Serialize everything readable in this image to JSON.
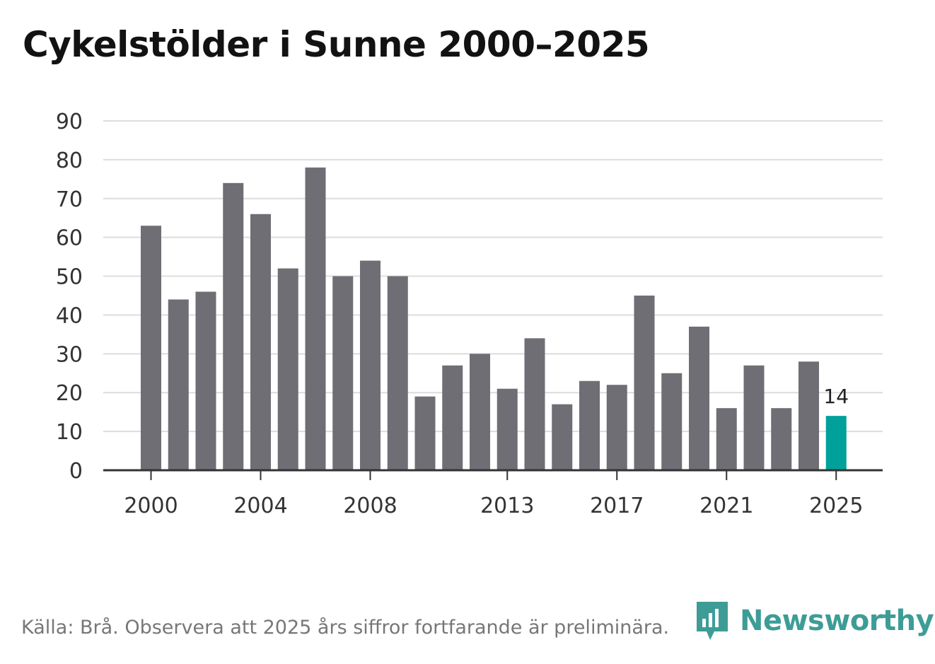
{
  "header": {
    "title": "Cykelstölder i Sunne 2000–2025"
  },
  "chart_data": {
    "type": "bar",
    "title": "Cykelstölder i Sunne 2000–2025",
    "xlabel": "",
    "ylabel": "",
    "categories": [
      "2000",
      "2001",
      "2002",
      "2003",
      "2004",
      "2005",
      "2006",
      "2007",
      "2008",
      "2009",
      "2010",
      "2011",
      "2012",
      "2013",
      "2014",
      "2015",
      "2016",
      "2017",
      "2018",
      "2019",
      "2020",
      "2021",
      "2022",
      "2023",
      "2024",
      "2025"
    ],
    "values": [
      63,
      44,
      46,
      74,
      66,
      52,
      78,
      50,
      54,
      50,
      19,
      27,
      30,
      21,
      34,
      17,
      23,
      22,
      45,
      25,
      37,
      16,
      27,
      16,
      28,
      14
    ],
    "ylim": [
      0,
      90
    ],
    "yticks": [
      0,
      10,
      20,
      30,
      40,
      50,
      60,
      70,
      80,
      90
    ],
    "xticks": [
      "2000",
      "2004",
      "2008",
      "2013",
      "2017",
      "2021",
      "2025"
    ],
    "highlight": {
      "category": "2025",
      "label": "14"
    },
    "grid": true,
    "colors": {
      "bar": "#6f6e75",
      "highlight": "#00a19a",
      "grid": "#dcdcdc",
      "axis": "#333333"
    }
  },
  "footer": {
    "source": "Källa: Brå. Observera att 2025 års siffror fortfarande är preliminära.",
    "brand": "Newsworthy",
    "brand_color": "#3d9d96",
    "logo_icon": "newsworthy-logo-icon"
  }
}
